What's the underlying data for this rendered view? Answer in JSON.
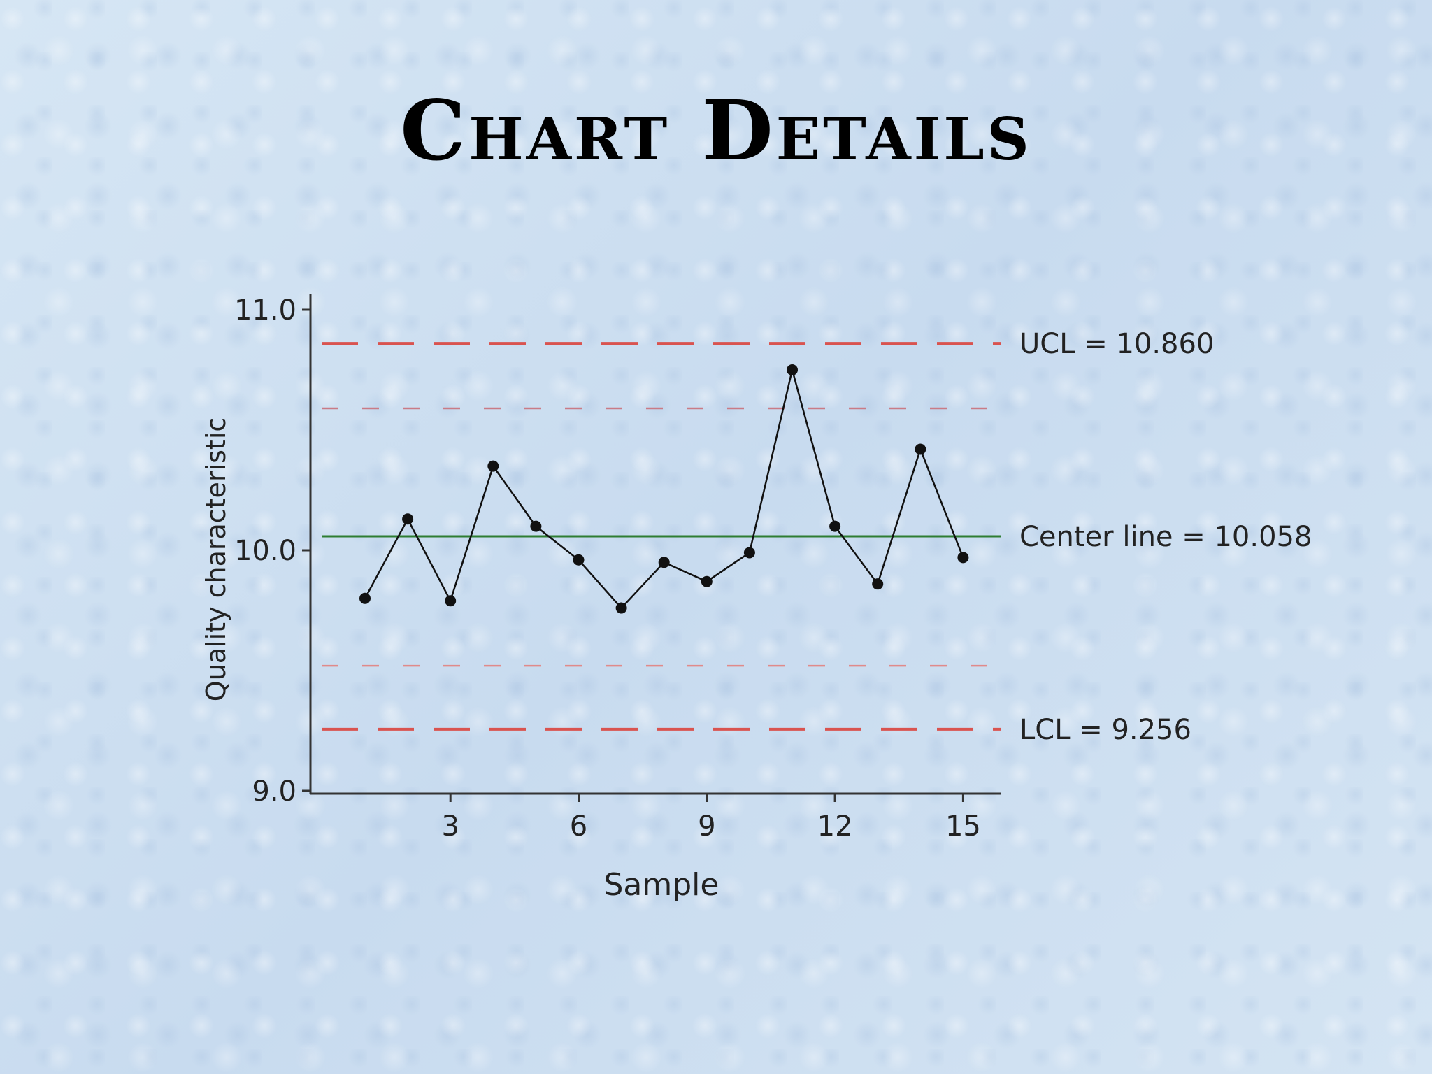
{
  "slide": {
    "title": "Chart Details"
  },
  "chart_data": {
    "type": "line",
    "xlabel": "Sample",
    "ylabel": "Quality characteristic",
    "ylim": [
      9.0,
      11.0
    ],
    "yticks": [
      9.0,
      10.0,
      11.0
    ],
    "ytick_labels": [
      "9.0",
      "10.0",
      "11.0"
    ],
    "xticks": [
      3,
      6,
      9,
      12,
      15
    ],
    "xtick_labels": [
      "3",
      "6",
      "9",
      "12",
      "15"
    ],
    "x": [
      1,
      2,
      3,
      4,
      5,
      6,
      7,
      8,
      9,
      10,
      11,
      12,
      13,
      14,
      15
    ],
    "values": [
      9.8,
      10.13,
      9.79,
      10.35,
      10.1,
      9.96,
      9.76,
      9.95,
      9.87,
      9.99,
      10.75,
      10.1,
      9.86,
      10.42,
      9.97
    ],
    "reference_lines": [
      {
        "kind": "ucl",
        "value": 10.86,
        "label": "UCL = 10.860",
        "color": "#d9534f",
        "style": "long-dash"
      },
      {
        "kind": "upper-warning",
        "value": 10.59,
        "label": "",
        "color": "#c97b86",
        "style": "short-dash"
      },
      {
        "kind": "center",
        "value": 10.058,
        "label": "Center line = 10.058",
        "color": "#2e7d32",
        "style": "solid"
      },
      {
        "kind": "lower-warning",
        "value": 9.52,
        "label": "",
        "color": "#e08a8a",
        "style": "short-dash"
      },
      {
        "kind": "lcl",
        "value": 9.256,
        "label": "LCL = 9.256",
        "color": "#d9534f",
        "style": "long-dash"
      }
    ],
    "grid": false,
    "series_color": "#111111"
  }
}
